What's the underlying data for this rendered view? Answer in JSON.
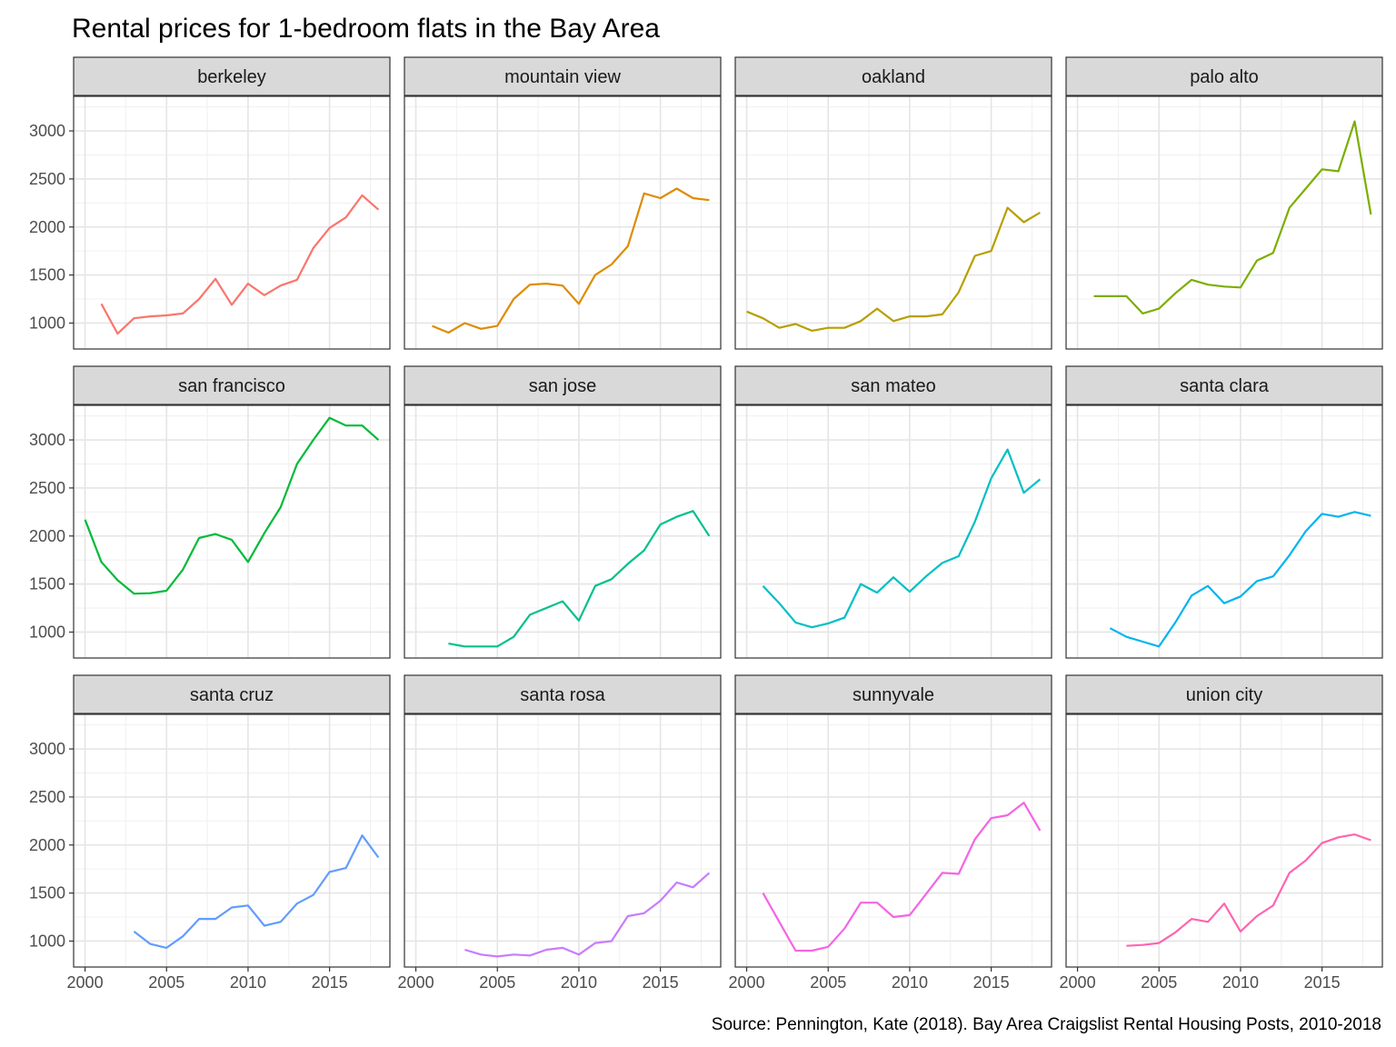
{
  "chart_data": {
    "type": "line",
    "layout": "facet-grid",
    "title": "Rental prices for 1-bedroom flats in the Bay Area",
    "caption": "Source: Pennington, Kate (2018). Bay Area Craigslist Rental Housing Posts, 2010-2018",
    "xlabel": "",
    "ylabel": "",
    "xlim": [
      1999.3,
      2018.7
    ],
    "ylim": [
      730,
      3360
    ],
    "x_ticks": [
      2000,
      2005,
      2010,
      2015
    ],
    "x_tick_labels": [
      "2000",
      "2005",
      "2010",
      "2015"
    ],
    "y_ticks": [
      1000,
      1500,
      2000,
      2500,
      3000
    ],
    "y_tick_labels": [
      "1000",
      "1500",
      "2000",
      "2500",
      "3000"
    ],
    "grid": true,
    "legend": "none",
    "facets": [
      {
        "name": "berkeley",
        "color": "#F8766D",
        "x": [
          2001,
          2002,
          2003,
          2004,
          2005,
          2006,
          2007,
          2008,
          2009,
          2010,
          2011,
          2012,
          2013,
          2014,
          2015,
          2016,
          2017,
          2018
        ],
        "y": [
          1200,
          890,
          1050,
          1070,
          1080,
          1100,
          1250,
          1460,
          1190,
          1410,
          1290,
          1390,
          1450,
          1780,
          1990,
          2100,
          2330,
          2180
        ]
      },
      {
        "name": "mountain view",
        "color": "#DE8C00",
        "x": [
          2001,
          2002,
          2003,
          2004,
          2005,
          2006,
          2007,
          2008,
          2009,
          2010,
          2011,
          2012,
          2013,
          2014,
          2015,
          2016,
          2017,
          2018
        ],
        "y": [
          970,
          900,
          1000,
          940,
          970,
          1250,
          1400,
          1410,
          1390,
          1200,
          1500,
          1610,
          1800,
          2350,
          2300,
          2400,
          2300,
          2280
        ]
      },
      {
        "name": "oakland",
        "color": "#B79F00",
        "x": [
          2000,
          2001,
          2002,
          2003,
          2004,
          2005,
          2006,
          2007,
          2008,
          2009,
          2010,
          2011,
          2012,
          2013,
          2014,
          2015,
          2016,
          2017,
          2018
        ],
        "y": [
          1120,
          1050,
          950,
          990,
          920,
          950,
          950,
          1020,
          1150,
          1020,
          1070,
          1070,
          1090,
          1320,
          1700,
          1750,
          2200,
          2050,
          2150
        ]
      },
      {
        "name": "palo alto",
        "color": "#7CAE00",
        "x": [
          2001,
          2002,
          2003,
          2004,
          2005,
          2006,
          2007,
          2008,
          2009,
          2010,
          2011,
          2012,
          2013,
          2014,
          2015,
          2016,
          2017,
          2018
        ],
        "y": [
          1280,
          1280,
          1280,
          1100,
          1150,
          1310,
          1450,
          1400,
          1380,
          1370,
          1650,
          1730,
          2200,
          2400,
          2600,
          2580,
          3100,
          2130
        ]
      },
      {
        "name": "san francisco",
        "color": "#00BA38",
        "x": [
          2000,
          2001,
          2002,
          2003,
          2004,
          2005,
          2006,
          2007,
          2008,
          2009,
          2010,
          2011,
          2012,
          2013,
          2014,
          2015,
          2016,
          2017,
          2018
        ],
        "y": [
          2170,
          1730,
          1540,
          1400,
          1405,
          1430,
          1650,
          1980,
          2020,
          1960,
          1730,
          2030,
          2300,
          2750,
          3000,
          3230,
          3150,
          3150,
          3000
        ]
      },
      {
        "name": "san jose",
        "color": "#00C08B",
        "x": [
          2002,
          2003,
          2004,
          2005,
          2006,
          2007,
          2008,
          2009,
          2010,
          2011,
          2012,
          2013,
          2014,
          2015,
          2016,
          2017,
          2018
        ],
        "y": [
          880,
          850,
          850,
          850,
          950,
          1180,
          1250,
          1320,
          1120,
          1480,
          1550,
          1710,
          1850,
          2120,
          2200,
          2260,
          2000
        ]
      },
      {
        "name": "san mateo",
        "color": "#00BFC4",
        "x": [
          2001,
          2002,
          2003,
          2004,
          2005,
          2006,
          2007,
          2008,
          2009,
          2010,
          2011,
          2012,
          2013,
          2014,
          2015,
          2016,
          2017,
          2018
        ],
        "y": [
          1480,
          1300,
          1100,
          1050,
          1090,
          1150,
          1500,
          1410,
          1570,
          1420,
          1580,
          1720,
          1790,
          2150,
          2600,
          2900,
          2450,
          2590
        ]
      },
      {
        "name": "santa clara",
        "color": "#00B4F0",
        "x": [
          2002,
          2003,
          2004,
          2005,
          2006,
          2007,
          2008,
          2009,
          2010,
          2011,
          2012,
          2013,
          2014,
          2015,
          2016,
          2017,
          2018
        ],
        "y": [
          1040,
          950,
          900,
          850,
          1100,
          1380,
          1480,
          1300,
          1370,
          1530,
          1580,
          1800,
          2050,
          2230,
          2200,
          2250,
          2210
        ]
      },
      {
        "name": "santa cruz",
        "color": "#619CFF",
        "x": [
          2003,
          2004,
          2005,
          2006,
          2007,
          2008,
          2009,
          2010,
          2011,
          2012,
          2013,
          2014,
          2015,
          2016,
          2017,
          2018
        ],
        "y": [
          1100,
          970,
          930,
          1050,
          1230,
          1230,
          1350,
          1370,
          1160,
          1200,
          1390,
          1480,
          1720,
          1760,
          2100,
          1870
        ]
      },
      {
        "name": "santa rosa",
        "color": "#C77CFF",
        "x": [
          2003,
          2004,
          2005,
          2006,
          2007,
          2008,
          2009,
          2010,
          2011,
          2012,
          2013,
          2014,
          2015,
          2016,
          2017,
          2018
        ],
        "y": [
          910,
          860,
          840,
          860,
          850,
          910,
          930,
          860,
          980,
          1000,
          1260,
          1290,
          1420,
          1610,
          1560,
          1710
        ]
      },
      {
        "name": "sunnyvale",
        "color": "#F564E3",
        "x": [
          2001,
          2002,
          2003,
          2004,
          2005,
          2006,
          2007,
          2008,
          2009,
          2010,
          2011,
          2012,
          2013,
          2014,
          2015,
          2016,
          2017,
          2018
        ],
        "y": [
          1500,
          1200,
          900,
          900,
          940,
          1130,
          1400,
          1400,
          1250,
          1270,
          1490,
          1710,
          1700,
          2060,
          2280,
          2310,
          2440,
          2150
        ]
      },
      {
        "name": "union city",
        "color": "#FF64B0",
        "x": [
          2003,
          2004,
          2005,
          2006,
          2007,
          2008,
          2009,
          2010,
          2011,
          2012,
          2013,
          2014,
          2015,
          2016,
          2017,
          2018
        ],
        "y": [
          950,
          960,
          980,
          1090,
          1230,
          1200,
          1390,
          1100,
          1260,
          1370,
          1710,
          1840,
          2020,
          2080,
          2110,
          2050
        ]
      }
    ]
  }
}
